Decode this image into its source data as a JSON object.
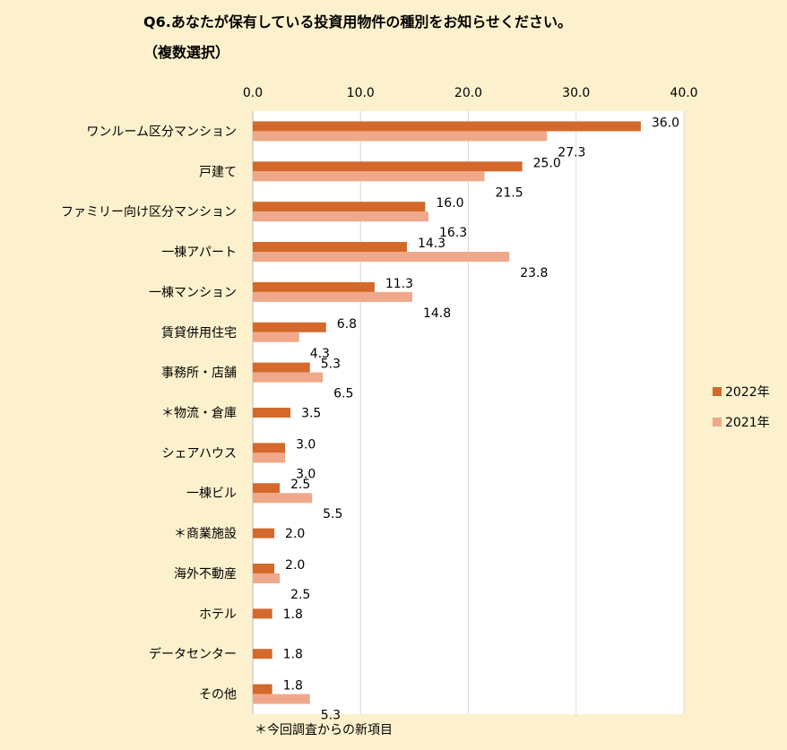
{
  "chart_data": {
    "type": "bar",
    "orientation": "horizontal",
    "title": "Q6.あなたが保有している投資用物件の種別をお知らせください。",
    "subtitle": "（複数選択）",
    "xlim": [
      0,
      40
    ],
    "xticks": [
      "0.0",
      "10.0",
      "20.0",
      "30.0",
      "40.0"
    ],
    "grid": true,
    "legend_position": "right",
    "categories": [
      "ワンルーム区分マンション",
      "戸建て",
      "ファミリー向け区分マンション",
      "一棟アパート",
      "一棟マンション",
      "賃貸併用住宅",
      "事務所・店舗",
      "＊物流・倉庫",
      "シェアハウス",
      "一棟ビル",
      "＊商業施設",
      "海外不動産",
      "ホテル",
      "データセンター",
      "その他"
    ],
    "series": [
      {
        "name": "2022年",
        "color": "#d4692b",
        "values": [
          36.0,
          25.0,
          16.0,
          14.3,
          11.3,
          6.8,
          5.3,
          3.5,
          3.0,
          2.5,
          2.0,
          2.0,
          1.8,
          1.8,
          1.8
        ],
        "labels": [
          "36.0",
          "25.0",
          "16.0",
          "14.3",
          "11.3",
          "6.8",
          "5.3",
          "3.5",
          "3.0",
          "2.5",
          "2.0",
          "2.0",
          "1.8",
          "1.8",
          "1.8"
        ]
      },
      {
        "name": "2021年",
        "color": "#f0a88a",
        "values": [
          27.3,
          21.5,
          16.3,
          23.8,
          14.8,
          4.3,
          6.5,
          null,
          3.0,
          5.5,
          null,
          2.5,
          null,
          null,
          5.3
        ],
        "labels": [
          "27.3",
          "21.5",
          "16.3",
          "23.8",
          "14.8",
          "4.3",
          "6.5",
          null,
          "3.0",
          "5.5",
          null,
          "2.5",
          null,
          null,
          "5.3"
        ]
      }
    ],
    "footnote": "＊今回調査からの新項目"
  }
}
